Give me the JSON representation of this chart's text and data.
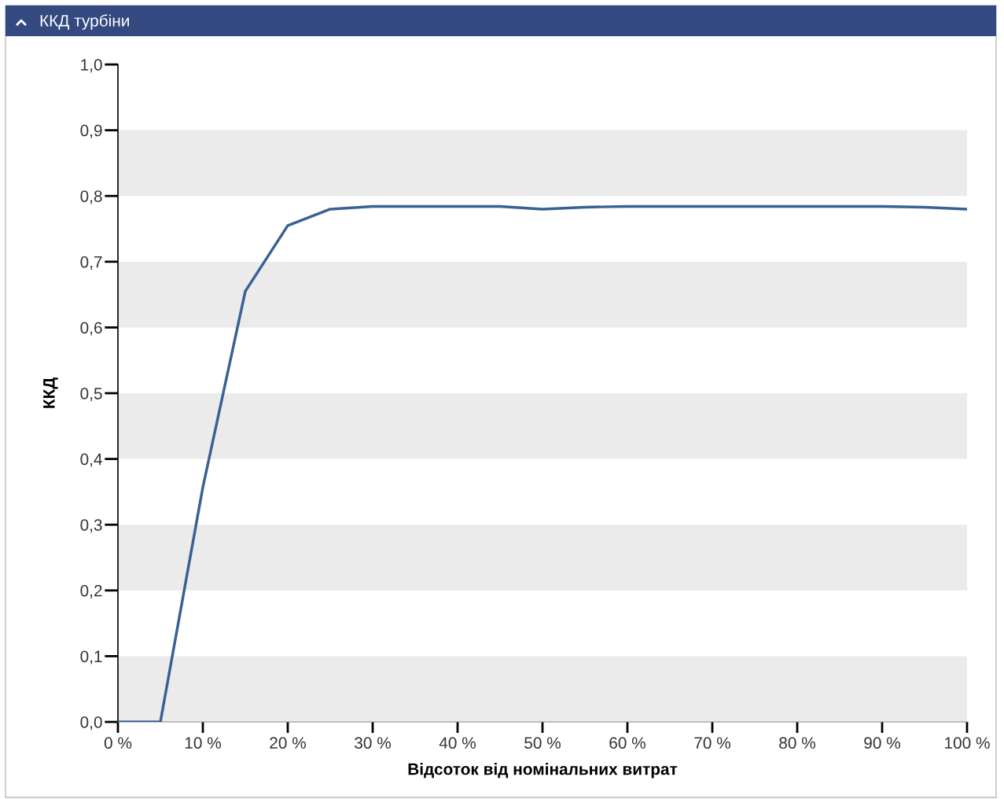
{
  "chart_data": {
    "type": "line",
    "title": "ККД турбіни",
    "xlabel": "Відсоток від номінальних витрат",
    "ylabel": "ККД",
    "x": [
      0,
      5,
      10,
      15,
      20,
      25,
      30,
      35,
      40,
      45,
      50,
      55,
      60,
      65,
      70,
      75,
      80,
      85,
      90,
      95,
      100
    ],
    "series": [
      {
        "color": "#3a6194",
        "values": [
          0,
          0,
          0.357,
          0.655,
          0.755,
          0.78,
          0.784,
          0.784,
          0.784,
          0.784,
          0.78,
          0.783,
          0.784,
          0.784,
          0.784,
          0.784,
          0.784,
          0.784,
          0.784,
          0.783,
          0.78
        ]
      }
    ],
    "xlim": [
      0,
      100
    ],
    "ylim": [
      0,
      1
    ],
    "xticks": [
      {
        "value": 0,
        "label": "0 %"
      },
      {
        "value": 10,
        "label": "10 %"
      },
      {
        "value": 20,
        "label": "20 %"
      },
      {
        "value": 30,
        "label": "30 %"
      },
      {
        "value": 40,
        "label": "40 %"
      },
      {
        "value": 50,
        "label": "50 %"
      },
      {
        "value": 60,
        "label": "60 %"
      },
      {
        "value": 70,
        "label": "70 %"
      },
      {
        "value": 80,
        "label": "80 %"
      },
      {
        "value": 90,
        "label": "90 %"
      },
      {
        "value": 100,
        "label": "100 %"
      }
    ],
    "yticks": [
      {
        "value": 0,
        "label": "0,0"
      },
      {
        "value": 0.1,
        "label": "0,1"
      },
      {
        "value": 0.2,
        "label": "0,2"
      },
      {
        "value": 0.3,
        "label": "0,3"
      },
      {
        "value": 0.4,
        "label": "0,4"
      },
      {
        "value": 0.5,
        "label": "0,5"
      },
      {
        "value": 0.6,
        "label": "0,6"
      },
      {
        "value": 0.7,
        "label": "0,7"
      },
      {
        "value": 0.8,
        "label": "0,8"
      },
      {
        "value": 0.9,
        "label": "0,9"
      },
      {
        "value": 1,
        "label": "1,0"
      }
    ],
    "bands": [
      {
        "axis": "y",
        "from": 0,
        "to": 0.1,
        "color": "#ebebeb"
      },
      {
        "axis": "y",
        "from": 0.2,
        "to": 0.3,
        "color": "#ebebeb"
      },
      {
        "axis": "y",
        "from": 0.4,
        "to": 0.5,
        "color": "#ebebeb"
      },
      {
        "axis": "y",
        "from": 0.6,
        "to": 0.7,
        "color": "#ebebeb"
      },
      {
        "axis": "y",
        "from": 0.8,
        "to": 0.9,
        "color": "#ebebeb"
      }
    ],
    "grid": false,
    "marker": "none",
    "line_style": "solid"
  }
}
